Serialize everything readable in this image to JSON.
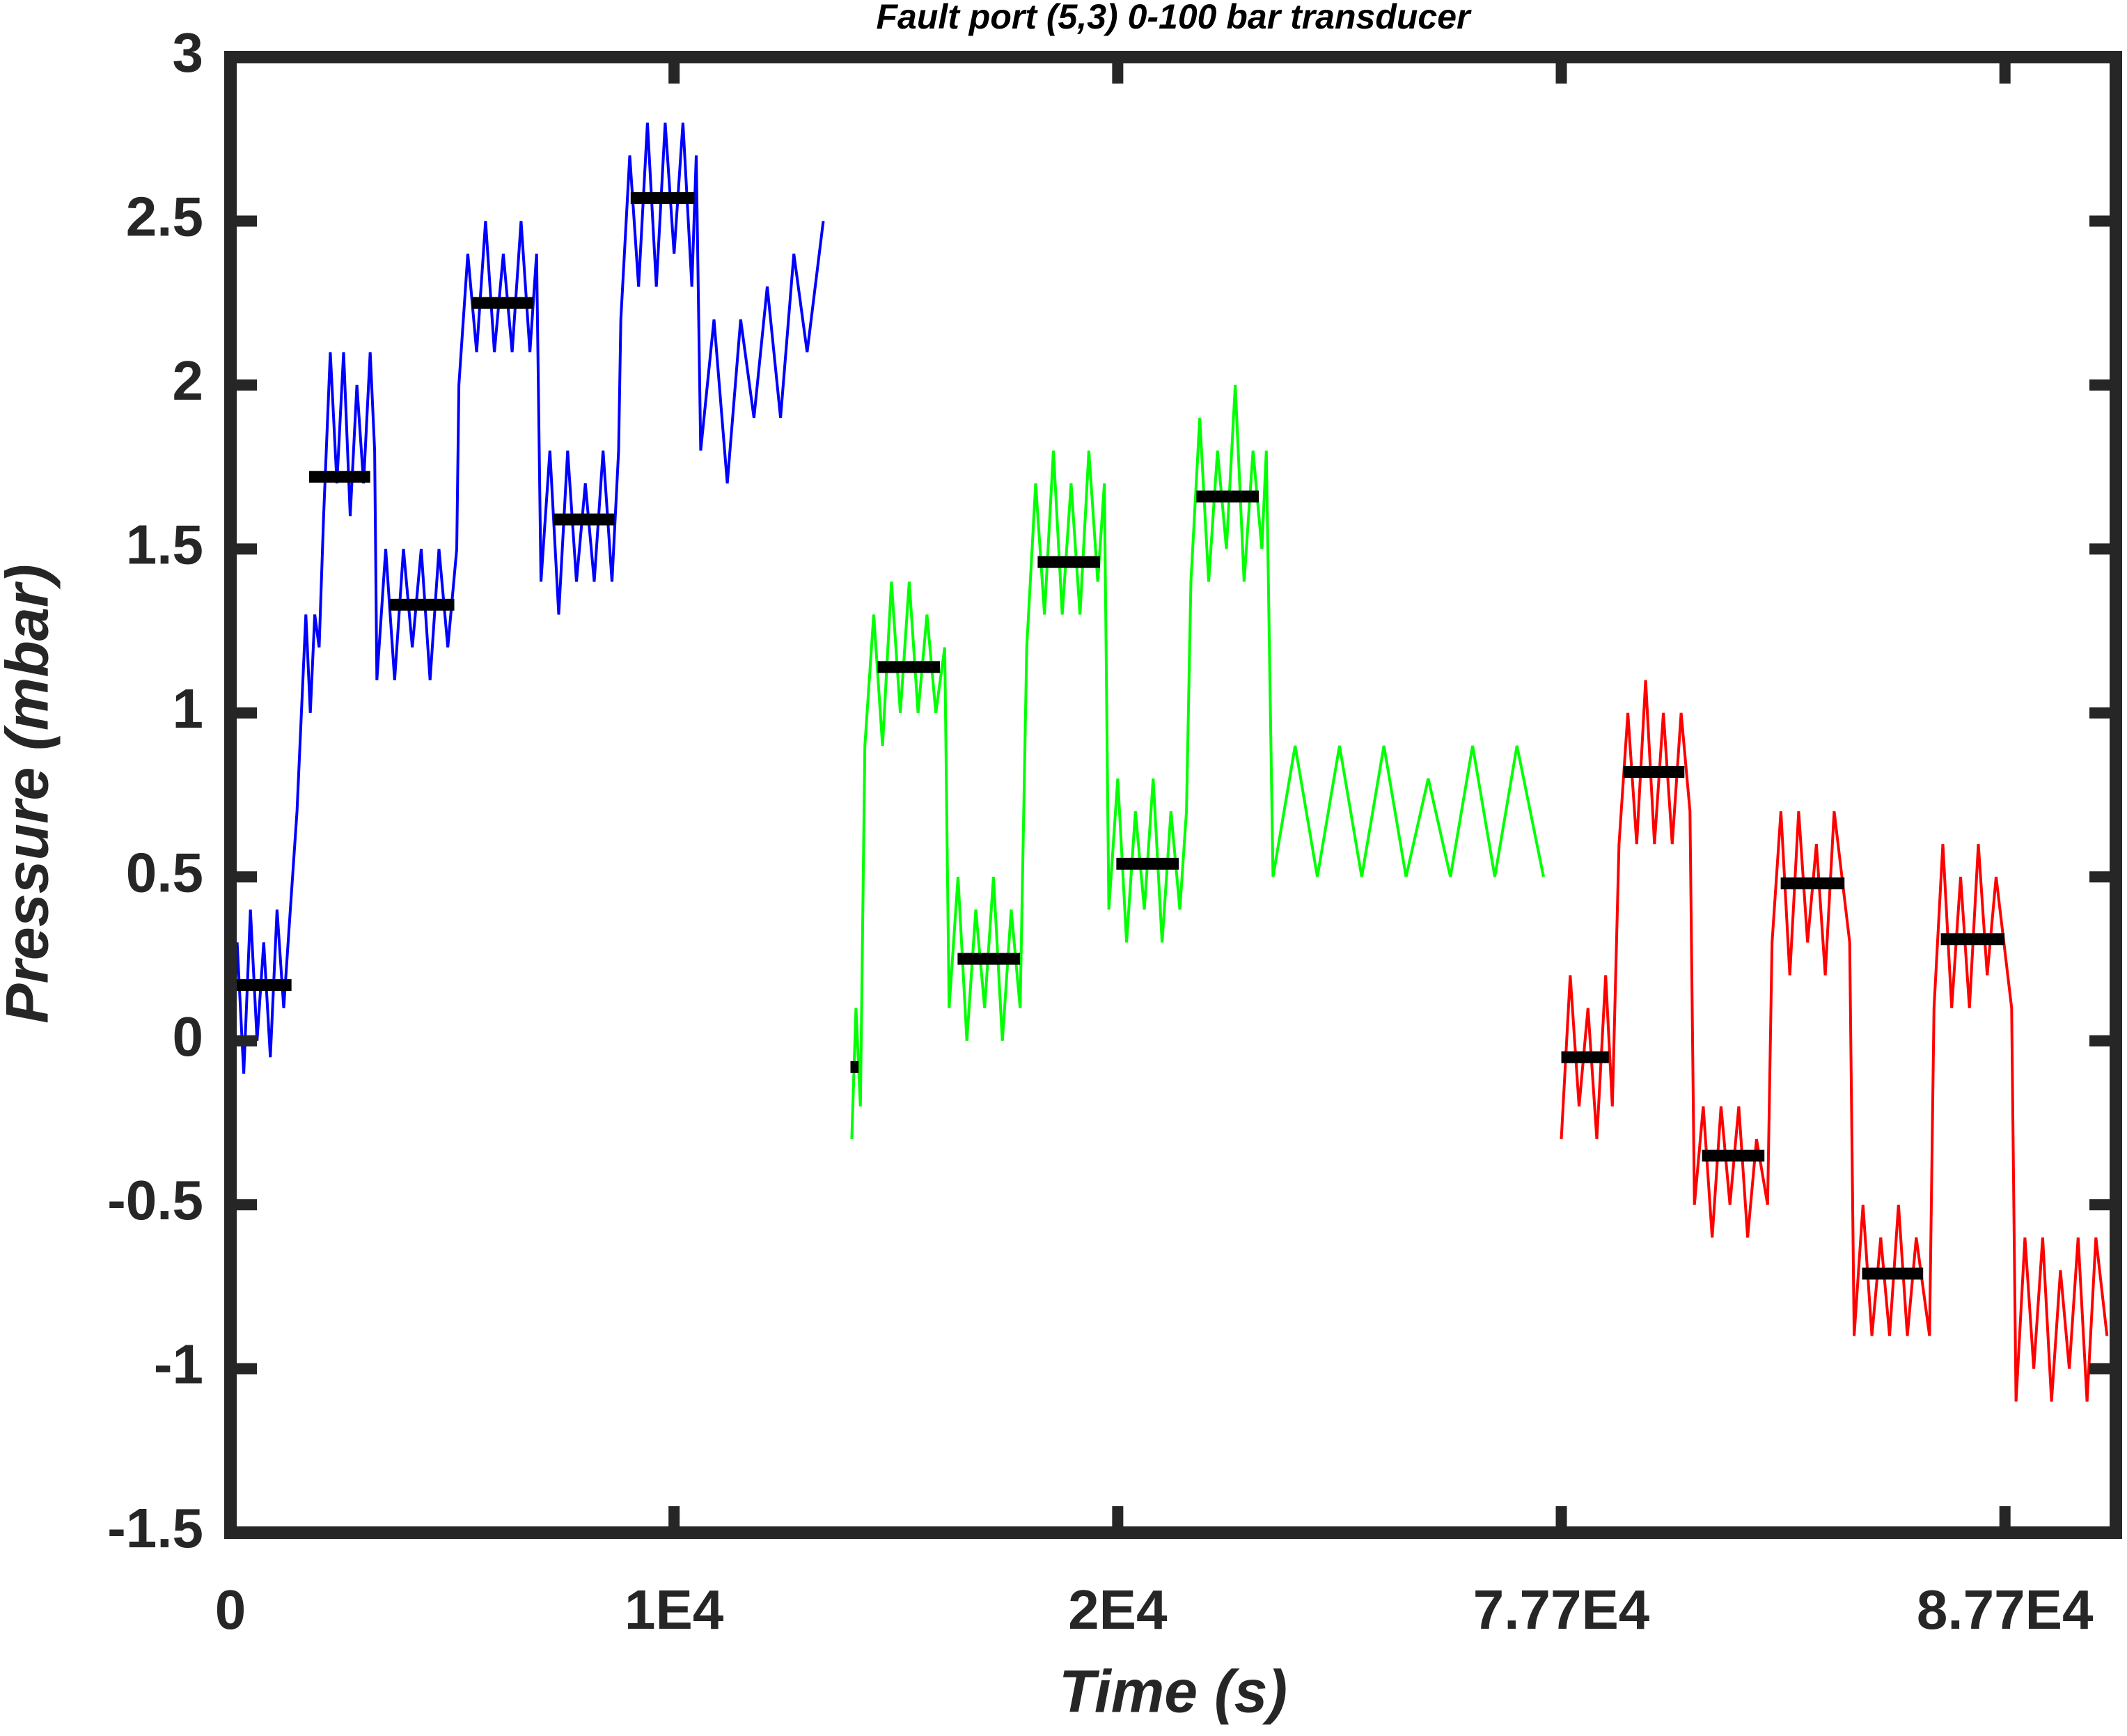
{
  "chart_data": {
    "type": "line",
    "title": "Fault port (5,3) 0-100 bar transducer",
    "xlabel": "Time (s)",
    "ylabel": "Pressure (mbar)",
    "xlim": [
      0,
      90200
    ],
    "x_break": [
      30000,
      77700
    ],
    "xticks": [
      0,
      {
        "value": 10000,
        "label": "1E4"
      },
      {
        "value": 20000,
        "label": "2E4"
      },
      {
        "value": 77700,
        "label": "7.77E4"
      },
      {
        "value": 87700,
        "label": "8.77E4"
      }
    ],
    "ylim": [
      -1.5,
      3
    ],
    "yticks": [
      -1.5,
      -1,
      -0.5,
      0,
      0.5,
      1,
      1.5,
      2,
      2.5,
      3
    ],
    "series": [
      {
        "color": "#0000ff",
        "x": [
          0,
          150,
          300,
          450,
          600,
          750,
          900,
          1050,
          1200,
          1350,
          1500,
          1600,
          1700,
          1800,
          1900,
          2000,
          2100,
          2250,
          2400,
          2550,
          2700,
          2850,
          3000,
          3150,
          3250,
          3300,
          3500,
          3700,
          3900,
          4100,
          4300,
          4500,
          4700,
          4900,
          5100,
          5150,
          5350,
          5550,
          5750,
          5950,
          6150,
          6350,
          6550,
          6750,
          6900,
          7000,
          7200,
          7400,
          7600,
          7800,
          8000,
          8200,
          8400,
          8600,
          8750,
          8800,
          9000,
          9200,
          9400,
          9600,
          9800,
          10000,
          10200,
          10400,
          10500,
          10600,
          10900,
          11200,
          11500,
          11800,
          12100,
          12400,
          12700,
          13000,
          13364
        ],
        "values": [
          -0.2,
          0.3,
          -0.1,
          0.4,
          0.0,
          0.3,
          -0.05,
          0.4,
          0.1,
          0.4,
          0.7,
          1.0,
          1.3,
          1.0,
          1.3,
          1.2,
          1.6,
          2.1,
          1.7,
          2.1,
          1.6,
          2.0,
          1.7,
          2.1,
          1.8,
          1.1,
          1.5,
          1.1,
          1.5,
          1.2,
          1.5,
          1.1,
          1.5,
          1.2,
          1.5,
          2.0,
          2.4,
          2.1,
          2.5,
          2.1,
          2.4,
          2.1,
          2.5,
          2.1,
          2.4,
          1.4,
          1.8,
          1.3,
          1.8,
          1.4,
          1.7,
          1.4,
          1.8,
          1.4,
          1.8,
          2.2,
          2.7,
          2.3,
          2.8,
          2.3,
          2.8,
          2.4,
          2.8,
          2.3,
          2.7,
          1.8,
          2.2,
          1.7,
          2.2,
          1.9,
          2.3,
          1.9,
          2.4,
          2.1,
          2.5
        ]
      },
      {
        "color": "#00ff00",
        "x": [
          14006,
          14100,
          14200,
          14300,
          14500,
          14700,
          14900,
          15100,
          15300,
          15500,
          15700,
          15900,
          16100,
          16200,
          16400,
          16600,
          16800,
          17000,
          17200,
          17400,
          17600,
          17800,
          17950,
          18150,
          18350,
          18550,
          18750,
          18950,
          19150,
          19350,
          19550,
          19700,
          19800,
          20000,
          20200,
          20400,
          20600,
          20800,
          21000,
          21200,
          21400,
          21550,
          21650,
          21850,
          22050,
          22250,
          22450,
          22650,
          22850,
          23050,
          23250,
          23350,
          23500,
          24000,
          24500,
          25000,
          25500,
          26000,
          26500,
          27000,
          27500,
          28000,
          28500,
          29000,
          29600
        ],
        "values": [
          -0.3,
          0.1,
          -0.2,
          0.9,
          1.3,
          0.9,
          1.4,
          1.0,
          1.4,
          1.0,
          1.3,
          1.0,
          1.2,
          0.1,
          0.5,
          0.0,
          0.4,
          0.1,
          0.5,
          0.0,
          0.4,
          0.1,
          1.2,
          1.7,
          1.3,
          1.8,
          1.3,
          1.7,
          1.3,
          1.8,
          1.4,
          1.7,
          0.4,
          0.8,
          0.3,
          0.7,
          0.4,
          0.8,
          0.3,
          0.7,
          0.4,
          0.7,
          1.4,
          1.9,
          1.4,
          1.8,
          1.5,
          2.0,
          1.4,
          1.8,
          1.5,
          1.8,
          0.5,
          0.9,
          0.5,
          0.9,
          0.5,
          0.9,
          0.5,
          0.8,
          0.5,
          0.9,
          0.5,
          0.9,
          0.5
        ]
      },
      {
        "color": "#ff0000",
        "x": [
          77700,
          77900,
          78100,
          78300,
          78500,
          78700,
          78850,
          79000,
          79200,
          79400,
          79600,
          79800,
          80000,
          80200,
          80400,
          80600,
          80700,
          80900,
          81100,
          81300,
          81500,
          81700,
          81900,
          82100,
          82350,
          82450,
          82650,
          82850,
          83050,
          83250,
          83450,
          83650,
          83850,
          84200,
          84300,
          84500,
          84700,
          84900,
          85100,
          85300,
          85500,
          85700,
          86000,
          86100,
          86300,
          86500,
          86700,
          86900,
          87100,
          87300,
          87500,
          87850,
          87950,
          88150,
          88350,
          88550,
          88750,
          88950,
          89150,
          89350,
          89550,
          89750,
          90000
        ],
        "values": [
          -0.3,
          0.2,
          -0.2,
          0.1,
          -0.3,
          0.2,
          -0.2,
          0.6,
          1.0,
          0.6,
          1.1,
          0.6,
          1.0,
          0.6,
          1.0,
          0.7,
          -0.5,
          -0.2,
          -0.6,
          -0.2,
          -0.5,
          -0.2,
          -0.6,
          -0.3,
          -0.5,
          0.3,
          0.7,
          0.2,
          0.7,
          0.3,
          0.6,
          0.2,
          0.7,
          0.3,
          -0.9,
          -0.5,
          -0.9,
          -0.6,
          -0.9,
          -0.5,
          -0.9,
          -0.6,
          -0.9,
          0.1,
          0.6,
          0.1,
          0.5,
          0.1,
          0.6,
          0.2,
          0.5,
          0.1,
          -1.1,
          -0.6,
          -1.0,
          -0.6,
          -1.1,
          -0.7,
          -1.0,
          -0.6,
          -1.1,
          -0.6,
          -0.9
        ]
      }
    ],
    "mean_color": "#000000",
    "mean_levels": [
      {
        "x": [
          0,
          1376
        ],
        "value": 0.17
      },
      {
        "x": [
          1774,
          3150
        ],
        "value": 1.72
      },
      {
        "x": [
          3578,
          5046
        ],
        "value": 1.33
      },
      {
        "x": [
          5443,
          6820
        ],
        "value": 2.25
      },
      {
        "x": [
          7278,
          8654
        ],
        "value": 1.59
      },
      {
        "x": [
          9021,
          10459
        ],
        "value": 2.57
      },
      {
        "x": [
          13976,
          14159
        ],
        "value": -0.08
      },
      {
        "x": [
          14587,
          15994
        ],
        "value": 1.14
      },
      {
        "x": [
          16391,
          17798
        ],
        "value": 0.25
      },
      {
        "x": [
          18196,
          19602
        ],
        "value": 1.46
      },
      {
        "x": [
          19969,
          21376
        ],
        "value": 0.54
      },
      {
        "x": [
          21774,
          23180
        ],
        "value": 1.66
      },
      {
        "x": [
          77700,
          78770
        ],
        "value": -0.05
      },
      {
        "x": [
          79098,
          80474
        ],
        "value": 0.82
      },
      {
        "x": [
          80872,
          82278
        ],
        "value": -0.35
      },
      {
        "x": [
          82645,
          84083
        ],
        "value": 0.48
      },
      {
        "x": [
          84480,
          85856
        ],
        "value": -0.71
      },
      {
        "x": [
          86254,
          87691
        ],
        "value": 0.31
      }
    ]
  }
}
